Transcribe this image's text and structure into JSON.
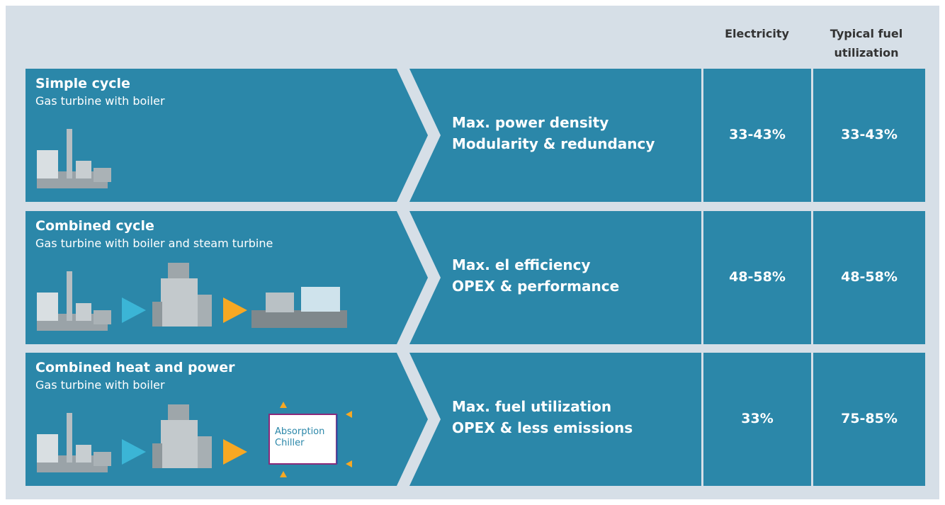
{
  "header": {
    "columns": [
      "Electricity",
      "Typical fuel utilization"
    ]
  },
  "rows": [
    {
      "title": "Simple cycle",
      "subtitle": "Gas turbine with boiler",
      "benefits": [
        "Max. power density",
        "Modularity & redundancy"
      ],
      "electricity": "33-43%",
      "fuel_utilization": "33-43%"
    },
    {
      "title": "Combined cycle",
      "subtitle": "Gas turbine with boiler and steam turbine",
      "benefits": [
        "Max. el efficiency",
        "OPEX & performance"
      ],
      "electricity": "48-58%",
      "fuel_utilization": "48-58%"
    },
    {
      "title": "Combined heat and power",
      "subtitle": "Gas turbine with boiler",
      "benefits": [
        "Max. fuel utilization",
        "OPEX & less emissions"
      ],
      "electricity": "33%",
      "fuel_utilization": "75-85%"
    }
  ],
  "chiller_label": [
    "Absorption",
    "Chiller"
  ]
}
